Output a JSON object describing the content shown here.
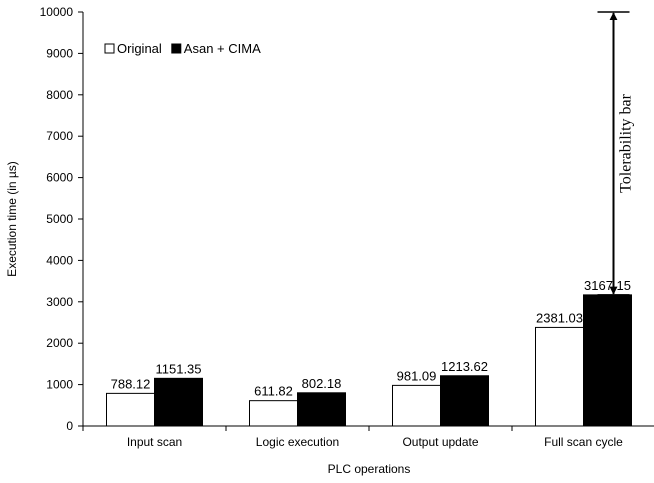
{
  "chart_data": {
    "type": "bar",
    "categories": [
      "Input scan",
      "Logic execution",
      "Output update",
      "Full scan cycle"
    ],
    "series": [
      {
        "name": "Original",
        "values": [
          788.12,
          611.82,
          981.09,
          2381.03
        ],
        "color": "#ffffff"
      },
      {
        "name": "Asan + CIMA",
        "values": [
          1151.35,
          802.18,
          1213.62,
          3167.15
        ],
        "color": "#000000"
      }
    ],
    "value_labels": [
      [
        "788.12",
        "611.82",
        "981.09",
        "2381.03"
      ],
      [
        "1151.35",
        "802.18",
        "1213.62",
        "3167.15"
      ]
    ],
    "xlabel": "PLC operations",
    "ylabel": "Execution time (in µs)",
    "ylim": [
      0,
      10000
    ],
    "yticks": [
      0,
      1000,
      2000,
      3000,
      4000,
      5000,
      6000,
      7000,
      8000,
      9000,
      10000
    ],
    "grid": false,
    "legend": {
      "position": "top-left",
      "entries": [
        "Original",
        "Asan + CIMA"
      ]
    },
    "annotation": {
      "label": "Tolerability bar",
      "from": 3167.15,
      "to": 10000,
      "category": "Full scan cycle"
    }
  }
}
